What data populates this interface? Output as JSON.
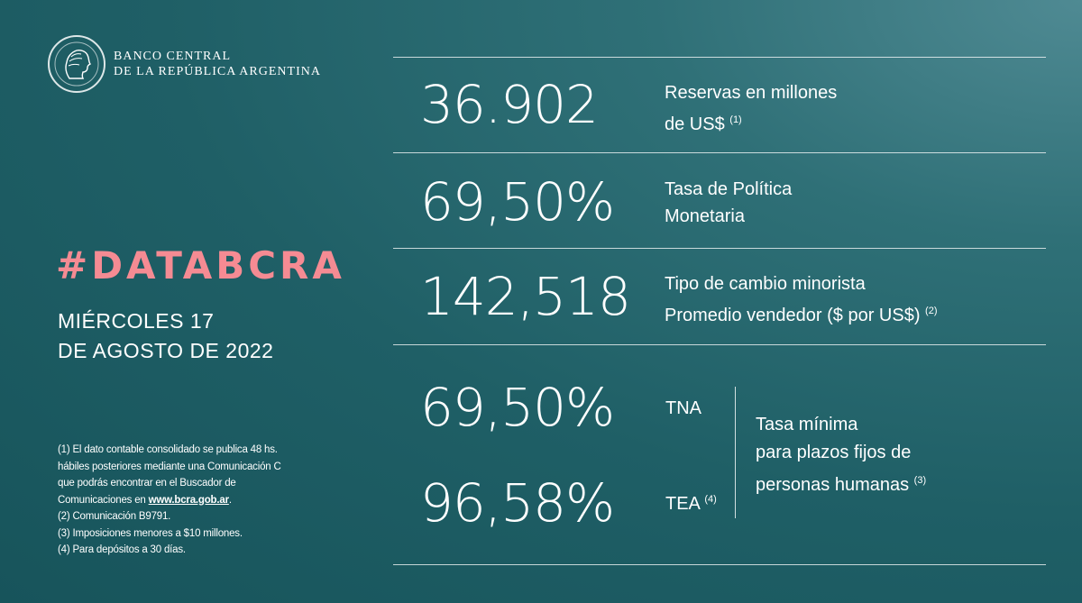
{
  "logo": {
    "line1": "BANCO CENTRAL",
    "line2": "DE LA REPÚBLICA ARGENTINA",
    "icon": "profile-seal-icon"
  },
  "hashtag": "#DATABCRA",
  "date": {
    "line1": "MIÉRCOLES 17",
    "line2": "DE AGOSTO DE 2022"
  },
  "rows": {
    "reserves": {
      "value": "36.902",
      "label1": "Reservas en millones",
      "label2": "de US$",
      "note": "(1)"
    },
    "policy_rate": {
      "value": "69,50%",
      "label1": "Tasa de Política",
      "label2": "Monetaria"
    },
    "exchange": {
      "value": "142,518",
      "label1": "Tipo de cambio minorista",
      "label2": "Promedio vendedor  ($ por US$)",
      "note": "(2)"
    },
    "deposits": {
      "tna_value": "69,50%",
      "tna_label": "TNA",
      "tea_value": "96,58%",
      "tea_label": "TEA",
      "tea_note": "(4)",
      "desc1": "Tasa mínima",
      "desc2": "para plazos fijos de",
      "desc3": "personas humanas",
      "desc_note": "(3)"
    }
  },
  "footnotes": {
    "l1": "(1) El dato contable consolidado se publica 48 hs.",
    "l2": "hábiles posteriores mediante una Comunicación C",
    "l3": "que podrás encontrar en el Buscador de",
    "l4_prefix": "Comunicaciones en ",
    "l4_link": "www.bcra.gob.ar",
    "l4_suffix": ".",
    "l5": "(2) Comunicación B9791.",
    "l6": "(3) Imposiciones menores a $10 millones.",
    "l7": "(4) Para depósitos a 30 días."
  },
  "colors": {
    "accent": "#f58b93",
    "background": "#1f5f66",
    "text": "#ffffff"
  }
}
